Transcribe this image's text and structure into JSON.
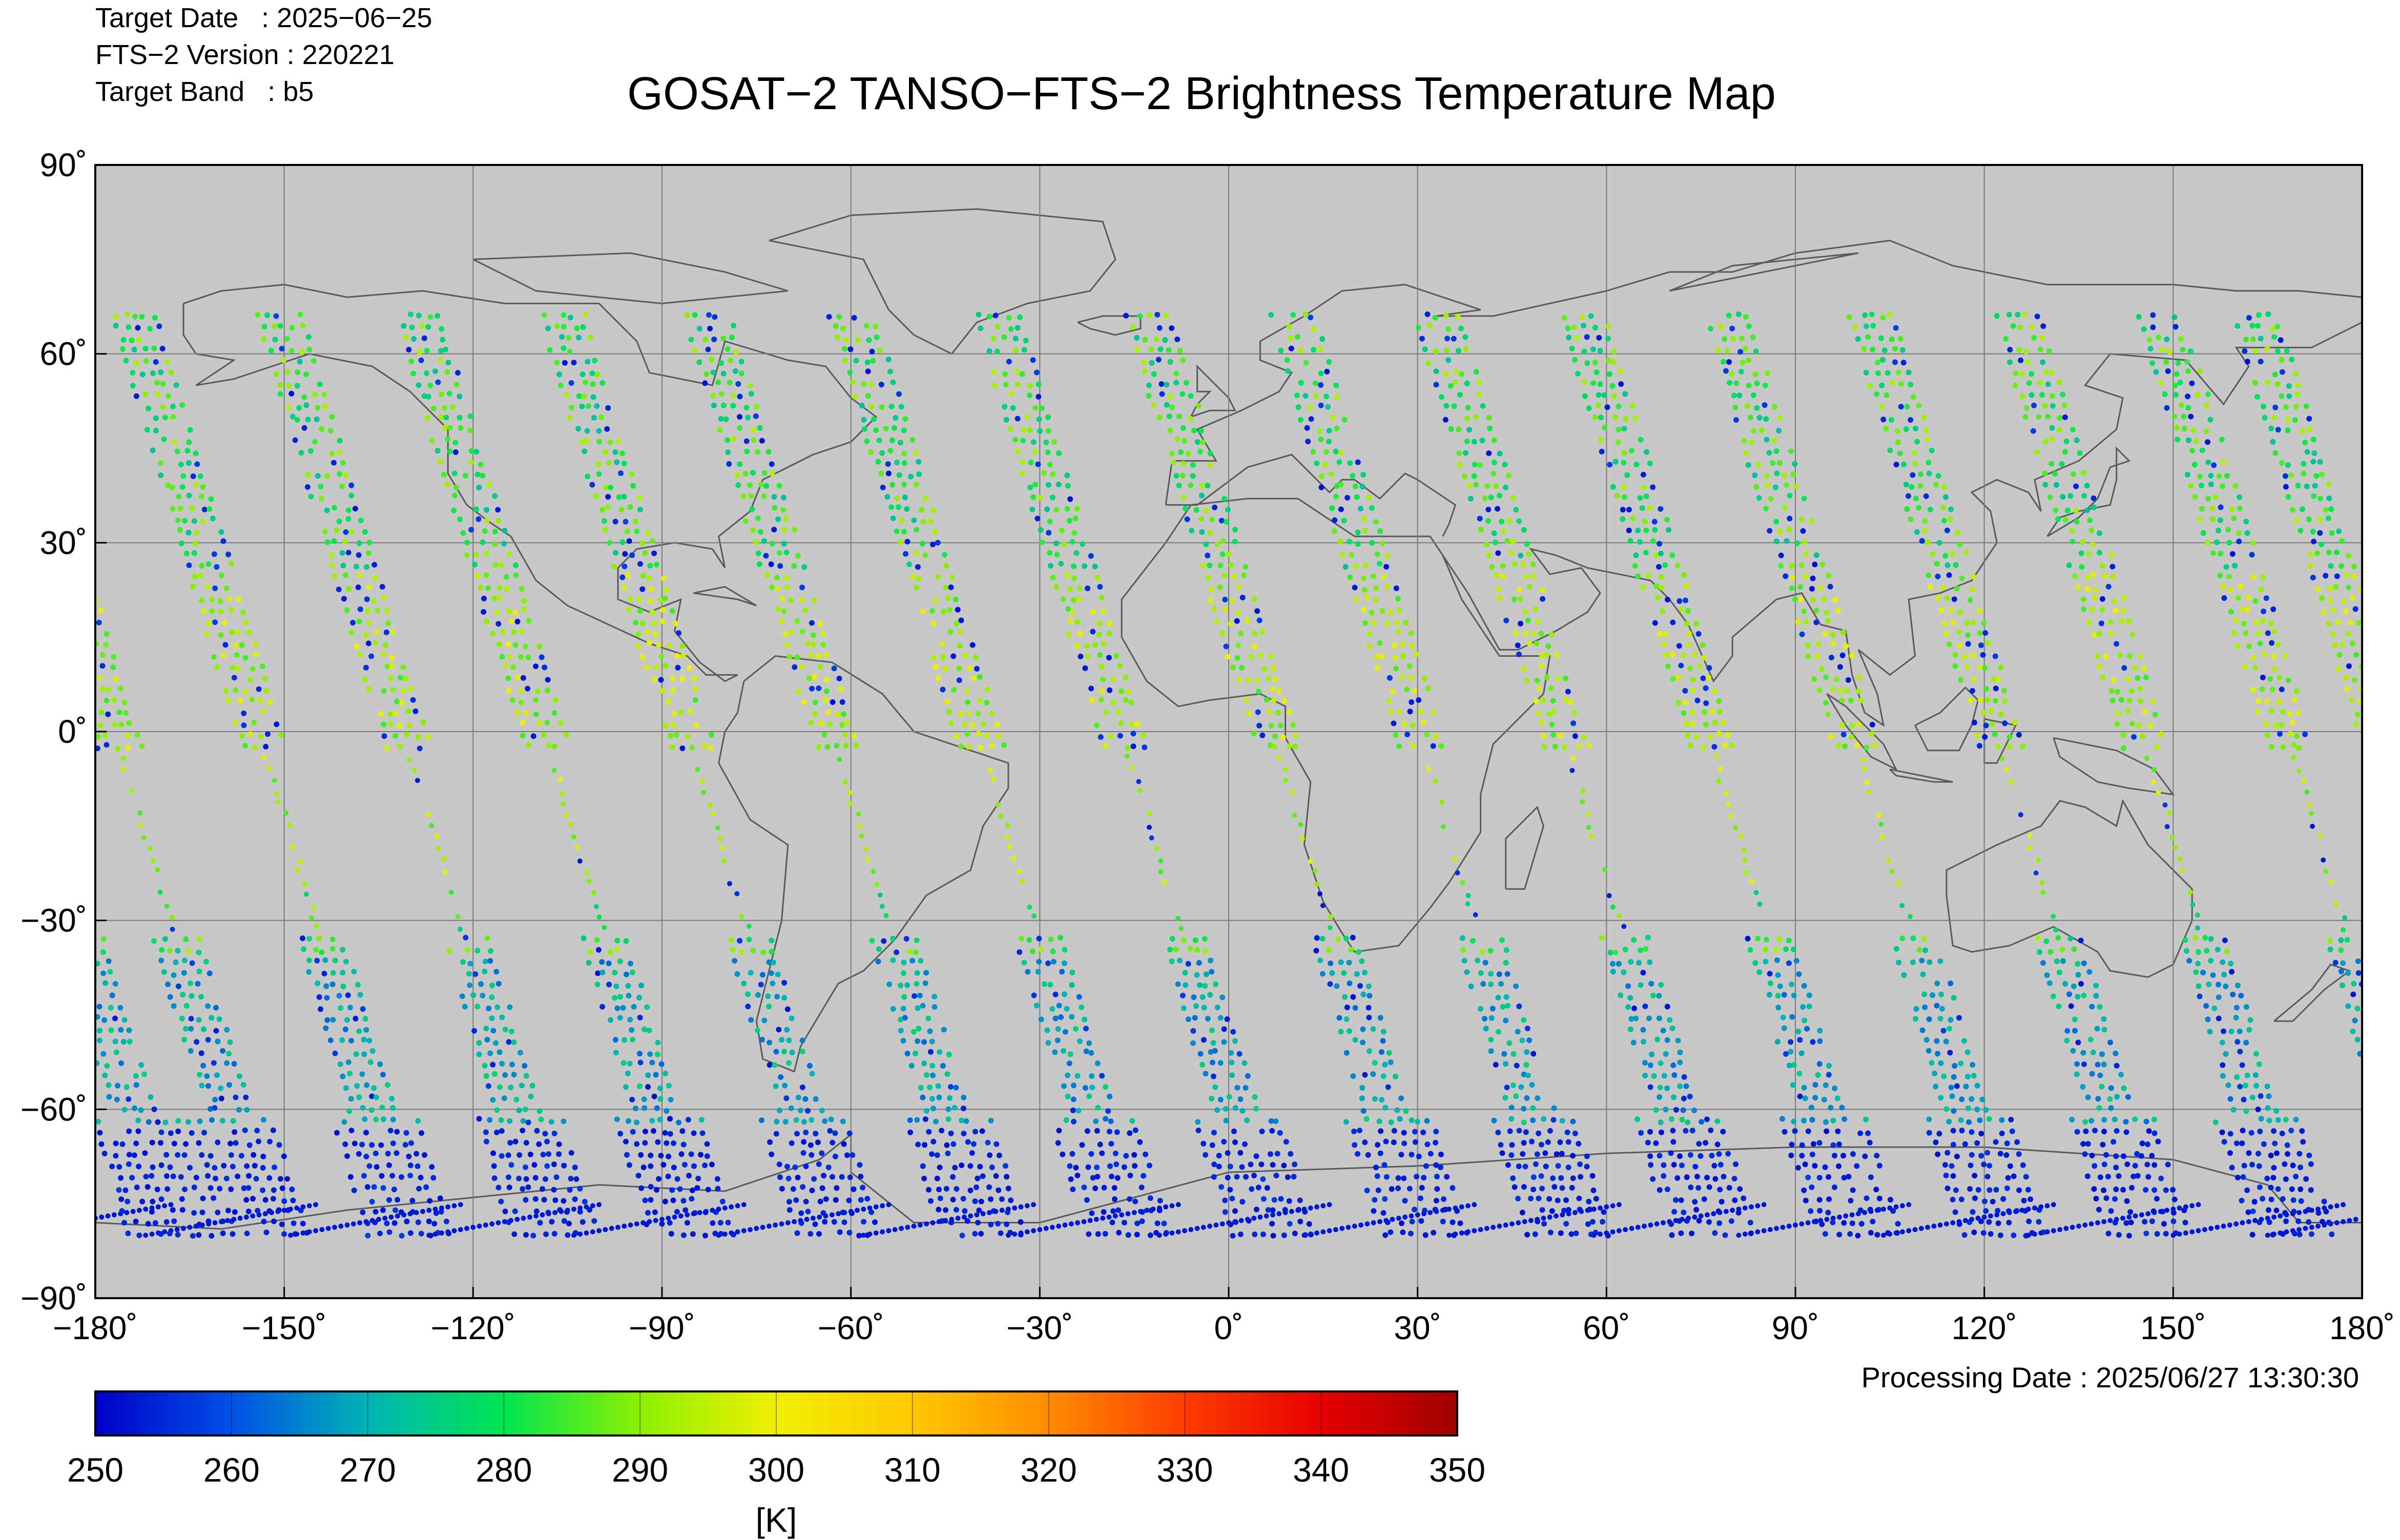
{
  "header": {
    "target_date": "Target Date   : 2025−06−25",
    "fts_version": "FTS−2 Version : 220221",
    "target_band": "Target Band   : b5"
  },
  "title": "GOSAT−2 TANSO−FTS−2 Brightness Temperature Map",
  "processing_date": "Processing Date : 2025/06/27 13:30:30",
  "map": {
    "lon_range": [
      -180,
      180
    ],
    "lat_range": [
      -90,
      90
    ],
    "grid": true,
    "background_color": "#c8c8c8",
    "coastline_color": "#5a5a5a",
    "x_tick_labels": [
      "−180˚",
      "−150˚",
      "−120˚",
      "−90˚",
      "−60˚",
      "−30˚",
      "0˚",
      "30˚",
      "60˚",
      "90˚",
      "120˚",
      "150˚",
      "180˚"
    ],
    "y_tick_labels": [
      "90˚",
      "60˚",
      "30˚",
      "0˚",
      "−30˚",
      "−60˚",
      "−90˚"
    ]
  },
  "chart_data": {
    "type": "scatter",
    "title": "GOSAT−2 TANSO−FTS−2 Brightness Temperature Map",
    "xlim": [
      -180,
      180
    ],
    "ylim": [
      -90,
      90
    ],
    "grid": true,
    "orbit_tracks_equator_lon": [
      -177,
      -154,
      -131,
      -109,
      -86,
      -63,
      -40,
      -17,
      7,
      30,
      53,
      76,
      99,
      122,
      145,
      168
    ],
    "color_scale": {
      "min": 250,
      "max": 350,
      "unit": "[K]",
      "tick_labels": [
        "250",
        "260",
        "270",
        "280",
        "290",
        "300",
        "310",
        "320",
        "330",
        "340",
        "350"
      ],
      "colors": [
        "#0000c8",
        "#0050e6",
        "#00b4b4",
        "#00e650",
        "#8cf000",
        "#f0f000",
        "#ffc800",
        "#ff8c00",
        "#ff3c00",
        "#e60000",
        "#a00000"
      ]
    }
  }
}
